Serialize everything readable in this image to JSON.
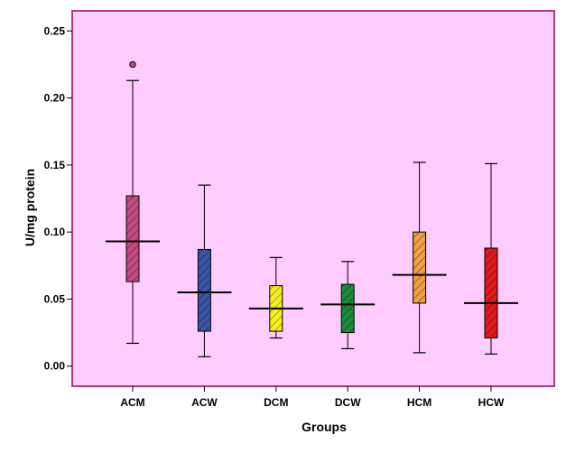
{
  "chart_data": {
    "type": "boxplot",
    "xlabel": "Groups",
    "ylabel": "U/mg protein",
    "ylim": [
      -0.015,
      0.265
    ],
    "yticks": [
      "0.00",
      "0.05",
      "0.10",
      "0.15",
      "0.20",
      "0.25"
    ],
    "ytick_values": [
      0.0,
      0.05,
      0.1,
      0.15,
      0.2,
      0.25
    ],
    "plot_background": "#ffccff",
    "plot_border": "#b03a7a",
    "categories": [
      "ACM",
      "ACW",
      "DCM",
      "DCW",
      "HCM",
      "HCW"
    ],
    "boxes": [
      {
        "name": "ACM",
        "min": 0.017,
        "q1": 0.063,
        "median": 0.093,
        "q3": 0.127,
        "max": 0.213,
        "outliers": [
          0.225
        ],
        "color": "#c44a82"
      },
      {
        "name": "ACW",
        "min": 0.007,
        "q1": 0.026,
        "median": 0.055,
        "q3": 0.087,
        "max": 0.135,
        "outliers": [],
        "color": "#3a55a5"
      },
      {
        "name": "DCM",
        "min": 0.021,
        "q1": 0.026,
        "median": 0.043,
        "q3": 0.06,
        "max": 0.081,
        "outliers": [],
        "color": "#f0f020"
      },
      {
        "name": "DCW",
        "min": 0.013,
        "q1": 0.025,
        "median": 0.046,
        "q3": 0.061,
        "max": 0.078,
        "outliers": [],
        "color": "#1a8a3a"
      },
      {
        "name": "HCM",
        "min": 0.01,
        "q1": 0.047,
        "median": 0.068,
        "q3": 0.1,
        "max": 0.152,
        "outliers": [],
        "color": "#f0a040"
      },
      {
        "name": "HCW",
        "min": 0.009,
        "q1": 0.021,
        "median": 0.047,
        "q3": 0.088,
        "max": 0.151,
        "outliers": [],
        "color": "#e01818"
      }
    ]
  }
}
